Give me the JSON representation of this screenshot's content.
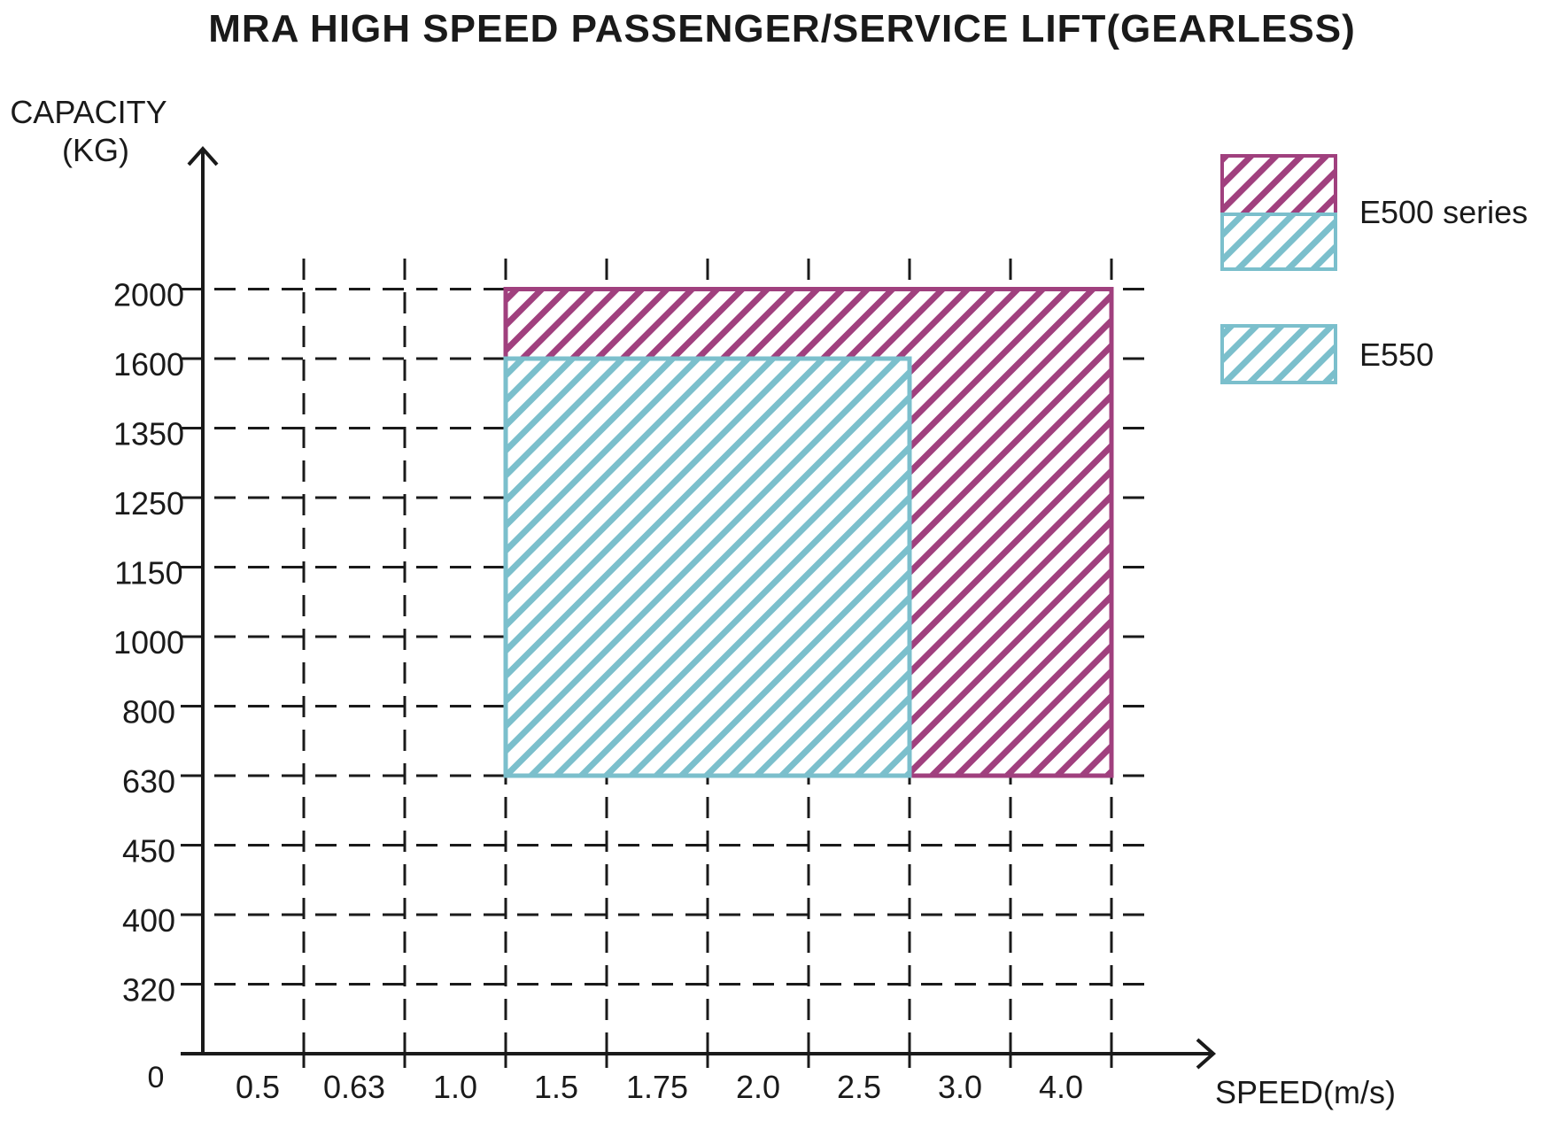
{
  "chart_data": {
    "type": "area",
    "title": "MRA HIGH SPEED PASSENGER/SERVICE LIFT(GEARLESS)",
    "xlabel": "SPEED(m/s)",
    "ylabel_line1": "CAPACITY",
    "ylabel_line2": "(KG)",
    "origin_label": "0",
    "x_ticks": [
      "0.5",
      "0.63",
      "1.0",
      "1.5",
      "1.75",
      "2.0",
      "2.5",
      "3.0",
      "4.0"
    ],
    "y_ticks": [
      "320",
      "400",
      "450",
      "630",
      "800",
      "1000",
      "1150",
      "1250",
      "1350",
      "1600",
      "2000"
    ],
    "grid": true,
    "legend_position": "right",
    "legend": [
      {
        "label": "E500 series",
        "swatch": "two-tone"
      },
      {
        "label": "E550",
        "swatch": "single"
      }
    ],
    "series": [
      {
        "name": "E500 series",
        "color": "#a0407e",
        "speed_range": [
          "1.0",
          "4.0"
        ],
        "capacity_range": [
          "630",
          "2000"
        ]
      },
      {
        "name": "E550",
        "color": "#7bbfcc",
        "speed_range": [
          "1.0",
          "2.5"
        ],
        "capacity_range": [
          "630",
          "1600"
        ]
      }
    ],
    "colors": {
      "axis": "#1a1a1a",
      "grid": "#1a1a1a",
      "e500": "#a0407e",
      "e550": "#7bbfcc"
    }
  }
}
